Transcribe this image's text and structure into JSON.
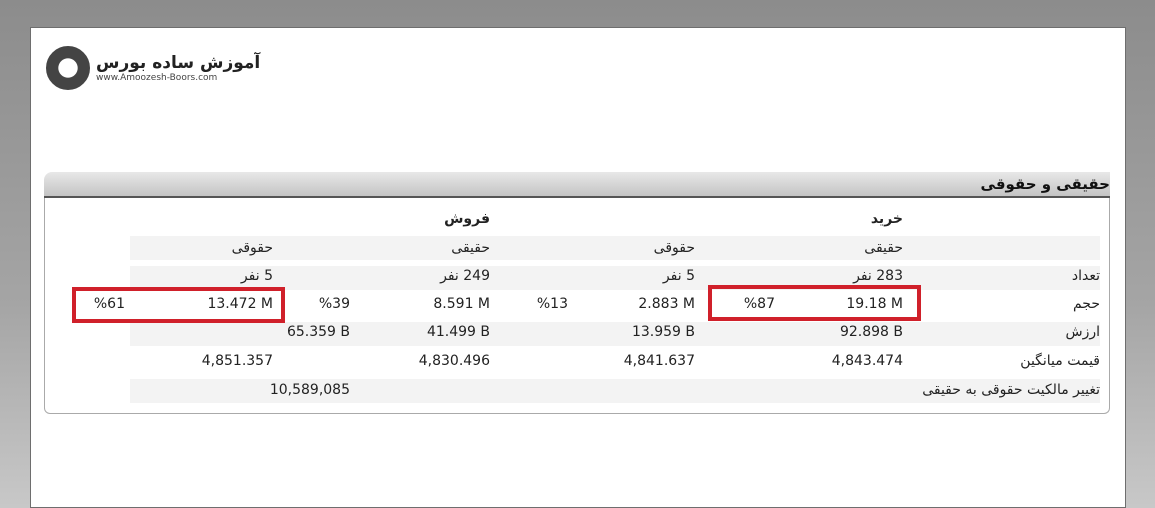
{
  "logo": {
    "name": "آموزش ساده بورس",
    "url": "www.Amoozesh-Boors.com"
  },
  "section_title": "حقیقی و حقوقی",
  "headers": {
    "buy": "خرید",
    "sell": "فروش",
    "real": "حقیقی",
    "legal": "حقوقی"
  },
  "rows": {
    "count": {
      "label": "تعداد",
      "buy_real": "283 نفر",
      "buy_legal": "5 نفر",
      "sell_real": "249 نفر",
      "sell_legal": "5 نفر"
    },
    "volume": {
      "label": "حجم",
      "buy_real": "19.18 M",
      "buy_real_pct": "%87",
      "buy_legal": "2.883 M",
      "buy_legal_pct": "%13",
      "sell_real": "8.591 M",
      "sell_real_pct": "%39",
      "sell_legal": "13.472 M",
      "sell_legal_pct": "%61"
    },
    "value": {
      "label": "ارزش",
      "buy_real": "92.898 B",
      "buy_legal": "13.959 B",
      "sell_real": "41.499 B",
      "sell_legal": "65.359 B"
    },
    "avg_price": {
      "label": "قیمت میانگین",
      "buy_real": "4,843.474",
      "buy_legal": "4,841.637",
      "sell_real": "4,830.496",
      "sell_legal": "4,851.357"
    },
    "ownership_change": {
      "label": "تغییر مالکیت حقوقی به حقیقی",
      "value": "10,589,085"
    }
  },
  "colors": {
    "highlight": "#d0202a"
  }
}
